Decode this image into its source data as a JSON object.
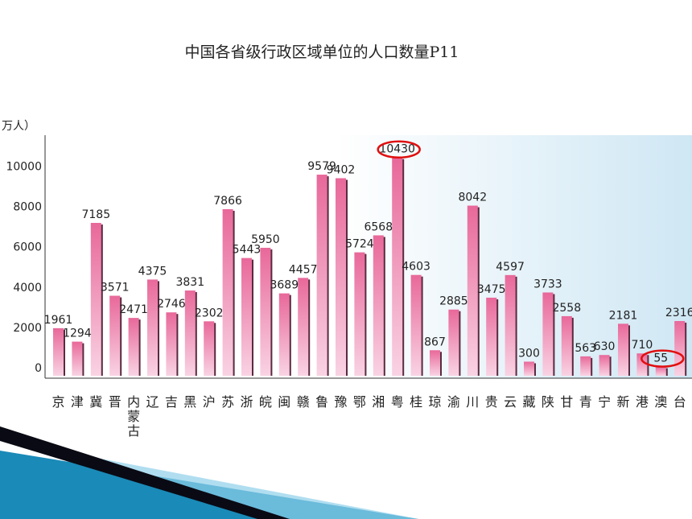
{
  "title": "中国各省级行政区域单位的人口数量P11",
  "colors": {
    "bar": "#e8689a",
    "bar_light": "#f9c8dc",
    "bar_shadow": "#5a2a40",
    "panel": "#d3e9f5",
    "highlight": "#e01010",
    "wedge_dark": "#0a0a14",
    "wedge_blue": "#1a8ab8"
  },
  "chart_data": {
    "type": "bar",
    "ylabel": "万人）",
    "ylim": [
      0,
      11000
    ],
    "yticks": [
      "0",
      "2000",
      "4000",
      "6000",
      "8000",
      "10000"
    ],
    "categories": [
      "京",
      "津",
      "冀",
      "晋",
      "内蒙古",
      "辽",
      "吉",
      "黑",
      "沪",
      "苏",
      "浙",
      "皖",
      "闽",
      "赣",
      "鲁",
      "豫",
      "鄂",
      "湘",
      "粤",
      "桂",
      "琼",
      "渝",
      "川",
      "贵",
      "云",
      "藏",
      "陕",
      "甘",
      "青",
      "宁",
      "新",
      "港",
      "澳",
      "台"
    ],
    "values": [
      1961,
      1294,
      7185,
      3571,
      2471,
      4375,
      2746,
      3831,
      2302,
      7866,
      5443,
      5950,
      3689,
      4457,
      9579,
      9402,
      5724,
      6568,
      10430,
      4603,
      867,
      2885,
      8042,
      3475,
      4597,
      300,
      3733,
      2558,
      563,
      630,
      2181,
      710,
      55,
      2316
    ],
    "highlighted": [
      "粤",
      "澳"
    ]
  }
}
